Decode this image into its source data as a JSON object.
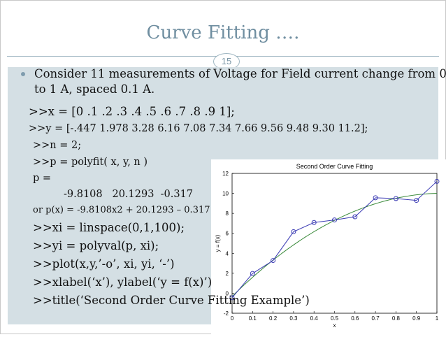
{
  "slide": {
    "title": "Curve Fitting ….",
    "page_number": "15",
    "bullet_text": "Consider 11 measurements of Voltage for Field current change from 0",
    "bullet_text_2": "to 1 A, spaced 0.1 A.",
    "code_lines": [
      ">>x = [0 .1 .2 .3 .4 .5 .6 .7 .8 .9 1];",
      ">>y = [-.447 1.978 3.28 6.16 7.08 7.34 7.66 9.56 9.48 9.30 11.2];",
      ">>n = 2;",
      ">>p = polyfit( x, y, n )",
      "p =",
      "-9.8108   20.1293  -0.317",
      "or p(x) = -9.8108x2 + 20.1293 – 0.317",
      ">>xi = linspace(0,1,100);",
      ">>yi = polyval(p, xi);",
      ">>plot(x,y,’-o’, xi, yi, ‘-’)",
      ">>xlabel(‘x’), ylabel(‘y = f(x)’)",
      ">>title(‘Second Order Curve Fitting Example’)"
    ]
  },
  "colors": {
    "title": "#6f8ea0",
    "content_bg": "#d4dfe4",
    "data_line": "#3c3cb4",
    "fit_line": "#3a8a3a"
  },
  "chart_data": {
    "type": "line",
    "title": "Second Order Curve Fitting",
    "xlabel": "x",
    "ylabel": "y = f(x)",
    "xlim": [
      0,
      1
    ],
    "ylim": [
      -2,
      12
    ],
    "x_ticks": [
      "0",
      "0.1",
      "0.2",
      "0.3",
      "0.4",
      "0.5",
      "0.6",
      "0.7",
      "0.8",
      "0.9",
      "1"
    ],
    "y_ticks": [
      "-2",
      "0",
      "2",
      "4",
      "6",
      "8",
      "10",
      "12"
    ],
    "grid": false,
    "series": [
      {
        "style": "line-with-circle-markers",
        "x": [
          0,
          0.1,
          0.2,
          0.3,
          0.4,
          0.5,
          0.6,
          0.7,
          0.8,
          0.9,
          1
        ],
        "y": [
          -0.447,
          1.978,
          3.28,
          6.16,
          7.08,
          7.34,
          7.66,
          9.56,
          9.48,
          9.3,
          11.2
        ]
      },
      {
        "style": "smooth-line",
        "polynomial": [
          -9.8108,
          20.1293,
          -0.317
        ]
      }
    ]
  }
}
